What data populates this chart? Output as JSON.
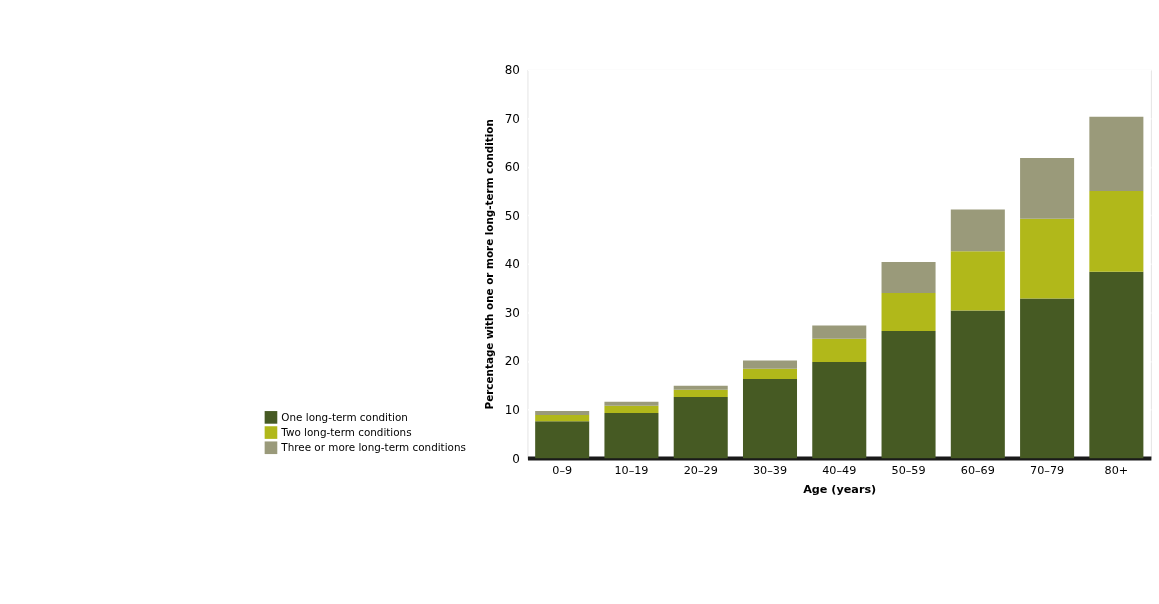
{
  "chart_data": {
    "type": "bar",
    "stacked": true,
    "xlabel": "Age (years)",
    "ylabel": "Percentage with one or more long-term condition",
    "categories": [
      "0–9",
      "10–19",
      "20–29",
      "30–39",
      "40–49",
      "50–59",
      "60–69",
      "70–79",
      "80+"
    ],
    "series": [
      {
        "name": "One long-term condition",
        "color": "#465a23",
        "values": [
          7.6,
          9.3,
          12.6,
          16.3,
          19.8,
          26.2,
          30.4,
          32.9,
          38.4
        ]
      },
      {
        "name": "Two long-term conditions",
        "color": "#b1b81a",
        "values": [
          1.3,
          1.5,
          1.5,
          2.1,
          4.8,
          7.8,
          12.2,
          16.4,
          16.6
        ]
      },
      {
        "name": "Three or more long-term conditions",
        "color": "#9a9a7a",
        "values": [
          0.8,
          0.8,
          0.8,
          1.7,
          2.7,
          6.4,
          8.6,
          12.5,
          15.3
        ]
      }
    ],
    "ylim": [
      0,
      80
    ],
    "yticks": [
      0,
      10,
      20,
      30,
      40,
      50,
      60,
      70,
      80
    ],
    "grid": "y",
    "legend": "bottom left"
  }
}
